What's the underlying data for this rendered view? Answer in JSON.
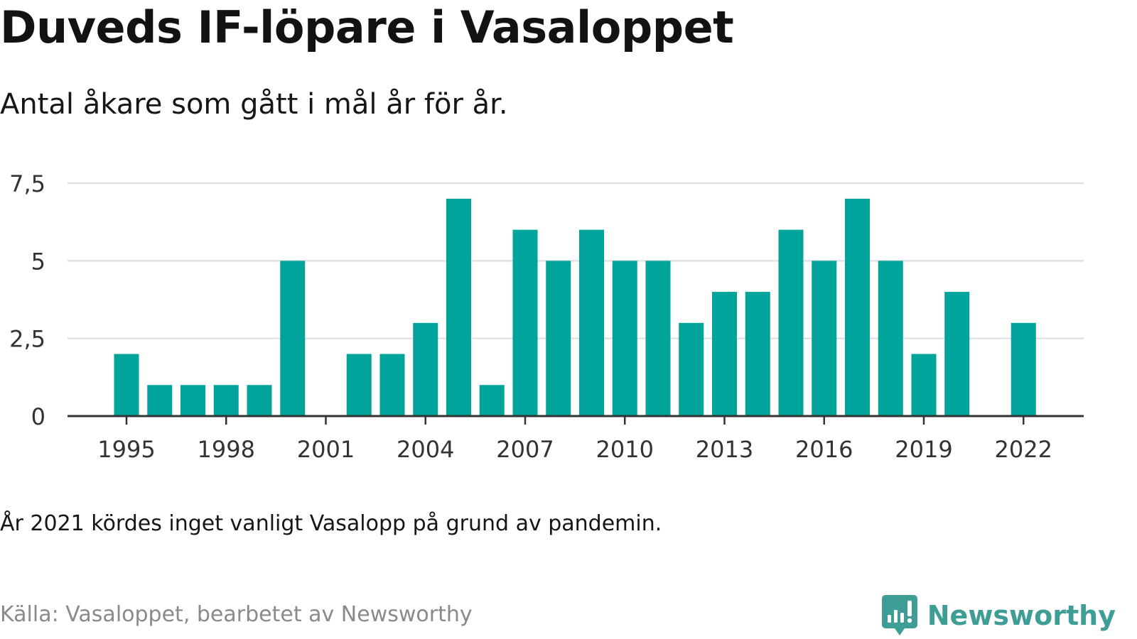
{
  "title": "Duveds IF-löpare i Vasaloppet",
  "subtitle": "Antal åkare som gått i mål år för år.",
  "note": "År 2021 kördes inget vanligt Vasalopp på grund av pandemin.",
  "source": "Källa: Vasaloppet, bearbetet av Newsworthy",
  "brand": {
    "name": "Newsworthy",
    "icon": "newsworthy-logo-icon",
    "color": "#3e9d94"
  },
  "colors": {
    "bar": "#00a49a",
    "grid": "#e2e2e2",
    "axis": "#333333",
    "tick_text": "#333333"
  },
  "chart_data": {
    "type": "bar",
    "categories": [
      1995,
      1996,
      1997,
      1998,
      1999,
      2000,
      2001,
      2002,
      2003,
      2004,
      2005,
      2006,
      2007,
      2008,
      2009,
      2010,
      2011,
      2012,
      2013,
      2014,
      2015,
      2016,
      2017,
      2018,
      2019,
      2020,
      2021,
      2022
    ],
    "values": [
      2,
      1,
      1,
      1,
      1,
      5,
      0,
      2,
      2,
      3,
      7,
      1,
      6,
      5,
      6,
      5,
      5,
      3,
      4,
      4,
      6,
      5,
      7,
      5,
      2,
      4,
      0,
      3
    ],
    "xticks": [
      "1995",
      "1998",
      "2001",
      "2004",
      "2007",
      "2010",
      "2013",
      "2016",
      "2019",
      "2022"
    ],
    "yticks": [
      "0",
      "2,5",
      "5",
      "7,5"
    ],
    "ylim": [
      0,
      7.5
    ],
    "grid": true,
    "xlabel": "",
    "ylabel": ""
  }
}
